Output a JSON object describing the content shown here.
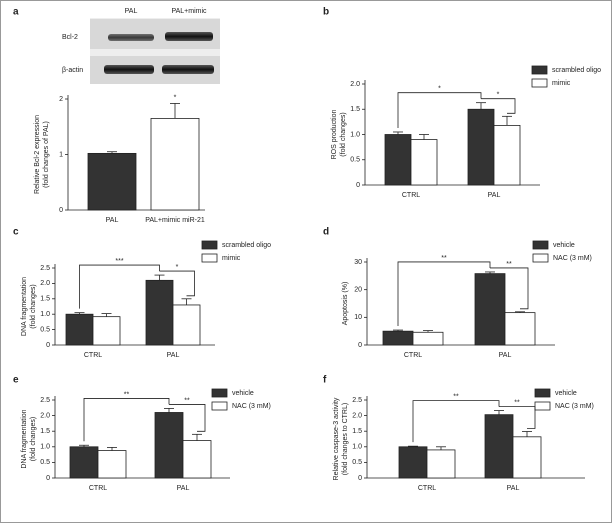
{
  "blot": {
    "lanes": [
      "PAL",
      "PAL+mimic"
    ],
    "rows": [
      "Bcl-2",
      "β-actin"
    ]
  },
  "chart_data": [
    {
      "type": "bar",
      "panel": "a",
      "ylabel": [
        "Relative Bcl-2 expression",
        "(fold changes of PAL)"
      ],
      "categories": [
        "PAL",
        "PAL+mimic miR-21"
      ],
      "values": [
        1.02,
        1.65
      ],
      "errors": [
        0.03,
        0.27
      ],
      "colors": [
        "#333333",
        "#ffffff"
      ],
      "ylim": [
        0,
        2
      ],
      "yticks": [
        0,
        1,
        2
      ],
      "annotations": [
        "*"
      ]
    },
    {
      "type": "bar",
      "panel": "b",
      "ylabel": [
        "ROS production",
        "(fold changes)"
      ],
      "categories": [
        "CTRL",
        "PAL"
      ],
      "series": [
        {
          "name": "scrambled oligo",
          "color": "#333333",
          "values": [
            1.0,
            1.5
          ],
          "errors": [
            0.05,
            0.13
          ]
        },
        {
          "name": "mimic",
          "color": "#ffffff",
          "values": [
            0.9,
            1.18
          ],
          "errors": [
            0.1,
            0.18
          ]
        }
      ],
      "ylim": [
        0,
        2
      ],
      "yticks": [
        0,
        0.5,
        {
          "value": 1,
          "label": "1.0"
        },
        1.5,
        {
          "value": 2,
          "label": "2.0"
        }
      ],
      "legend": "upper right",
      "annotations": [
        "*",
        "*"
      ]
    },
    {
      "type": "bar",
      "panel": "c",
      "ylabel": [
        "DNA fragmentation",
        "(fold changes)"
      ],
      "categories": [
        "CTRL",
        "PAL"
      ],
      "series": [
        {
          "name": "scrambled oligo",
          "color": "#333333",
          "values": [
            1.0,
            2.1
          ],
          "errors": [
            0.05,
            0.17
          ]
        },
        {
          "name": "mimic",
          "color": "#ffffff",
          "values": [
            0.92,
            1.3
          ],
          "errors": [
            0.1,
            0.2
          ]
        }
      ],
      "ylim": [
        0,
        2.5
      ],
      "yticks": [
        0,
        0.5,
        {
          "value": 1,
          "label": "1.0"
        },
        1.5,
        {
          "value": 2,
          "label": "2.0"
        },
        2.5
      ],
      "legend": "upper right",
      "annotations": [
        "***",
        "*"
      ]
    },
    {
      "type": "bar",
      "panel": "d",
      "ylabel": [
        "Apoptosis (%)"
      ],
      "categories": [
        "CTRL",
        "PAL"
      ],
      "series": [
        {
          "name": "vehicle",
          "color": "#333333",
          "values": [
            5.0,
            25.8
          ],
          "errors": [
            0.4,
            0.6
          ]
        },
        {
          "name": "NAC (3 mM)",
          "color": "#ffffff",
          "values": [
            4.6,
            11.7
          ],
          "errors": [
            0.6,
            0.3
          ]
        }
      ],
      "ylim": [
        0,
        30
      ],
      "yticks": [
        0,
        10,
        20,
        30
      ],
      "legend": "upper right",
      "annotations": [
        "**",
        "**"
      ]
    },
    {
      "type": "bar",
      "panel": "e",
      "ylabel": [
        "DNA fragmentation",
        "(fold changes)"
      ],
      "categories": [
        "CTRL",
        "PAL"
      ],
      "series": [
        {
          "name": "vehicle",
          "color": "#333333",
          "values": [
            1.0,
            2.1
          ],
          "errors": [
            0.05,
            0.13
          ]
        },
        {
          "name": "NAC (3 mM)",
          "color": "#ffffff",
          "values": [
            0.88,
            1.2
          ],
          "errors": [
            0.1,
            0.2
          ]
        }
      ],
      "ylim": [
        0,
        2.5
      ],
      "yticks": [
        0,
        0.5,
        {
          "value": 1,
          "label": "1.0"
        },
        1.5,
        {
          "value": 2,
          "label": "2.0"
        },
        2.5
      ],
      "legend": "upper right",
      "annotations": [
        "**",
        "**"
      ]
    },
    {
      "type": "bar",
      "panel": "f",
      "ylabel": [
        "Relative caspase-3 activity",
        "(fold changes to CTRL)"
      ],
      "categories": [
        "CTRL",
        "PAL"
      ],
      "series": [
        {
          "name": "vehicle",
          "color": "#333333",
          "values": [
            1.0,
            2.03
          ],
          "errors": [
            0.02,
            0.13
          ]
        },
        {
          "name": "NAC (3 mM)",
          "color": "#ffffff",
          "values": [
            0.9,
            1.32
          ],
          "errors": [
            0.1,
            0.17
          ]
        }
      ],
      "ylim": [
        0,
        2.5
      ],
      "yticks": [
        0,
        0.5,
        {
          "value": 1,
          "label": "1.0"
        },
        1.5,
        {
          "value": 2,
          "label": "2.0"
        },
        2.5
      ],
      "legend": "upper right",
      "annotations": [
        "**",
        "**"
      ]
    }
  ]
}
